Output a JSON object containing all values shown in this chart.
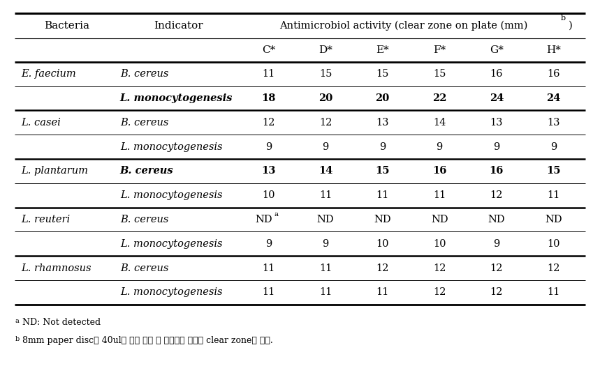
{
  "bacteria_col_header": "Bacteria",
  "indicator_col_header": "Indicator",
  "activity_header": "Antimicrobiol activity (clear zone on plate (mm))",
  "sub_headers": [
    "C*",
    "D*",
    "E*",
    "F*",
    "G*",
    "H*"
  ],
  "rows": [
    {
      "bacteria": "E. faecium",
      "indicator": "B. cereus",
      "indicator_bold": false,
      "values": [
        "11",
        "15",
        "15",
        "15",
        "16",
        "16"
      ],
      "values_bold": false,
      "bacteria_show": true,
      "group_end": false
    },
    {
      "bacteria": "",
      "indicator": "L. monocytogenesis",
      "indicator_bold": true,
      "values": [
        "18",
        "20",
        "20",
        "22",
        "24",
        "24"
      ],
      "values_bold": true,
      "bacteria_show": false,
      "group_end": true
    },
    {
      "bacteria": "L. casei",
      "indicator": "B. cereus",
      "indicator_bold": false,
      "values": [
        "12",
        "12",
        "13",
        "14",
        "13",
        "13"
      ],
      "values_bold": false,
      "bacteria_show": true,
      "group_end": false
    },
    {
      "bacteria": "",
      "indicator": "L. monocytogenesis",
      "indicator_bold": false,
      "values": [
        "9",
        "9",
        "9",
        "9",
        "9",
        "9"
      ],
      "values_bold": false,
      "bacteria_show": false,
      "group_end": true
    },
    {
      "bacteria": "L. plantarum",
      "indicator": "B. cereus",
      "indicator_bold": true,
      "values": [
        "13",
        "14",
        "15",
        "16",
        "16",
        "15"
      ],
      "values_bold": true,
      "bacteria_show": true,
      "group_end": false
    },
    {
      "bacteria": "",
      "indicator": "L. monocytogenesis",
      "indicator_bold": false,
      "values": [
        "10",
        "11",
        "11",
        "11",
        "12",
        "11"
      ],
      "values_bold": false,
      "bacteria_show": false,
      "group_end": true
    },
    {
      "bacteria": "L. reuteri",
      "indicator": "B. cereus",
      "indicator_bold": false,
      "values": [
        "ND_a",
        "ND",
        "ND",
        "ND",
        "ND",
        "ND"
      ],
      "values_bold": false,
      "bacteria_show": true,
      "group_end": false
    },
    {
      "bacteria": "",
      "indicator": "L. monocytogenesis",
      "indicator_bold": false,
      "values": [
        "9",
        "9",
        "10",
        "10",
        "9",
        "10"
      ],
      "values_bold": false,
      "bacteria_show": false,
      "group_end": true
    },
    {
      "bacteria": "L. rhamnosus",
      "indicator": "B. cereus",
      "indicator_bold": false,
      "values": [
        "11",
        "11",
        "12",
        "12",
        "12",
        "12"
      ],
      "values_bold": false,
      "bacteria_show": true,
      "group_end": false
    },
    {
      "bacteria": "",
      "indicator": "L. monocytogenesis",
      "indicator_bold": false,
      "values": [
        "11",
        "11",
        "11",
        "12",
        "12",
        "11"
      ],
      "values_bold": false,
      "bacteria_show": false,
      "group_end": true
    }
  ],
  "footnote_a": "aNDa: Not detected",
  "bg_color": "#ffffff"
}
